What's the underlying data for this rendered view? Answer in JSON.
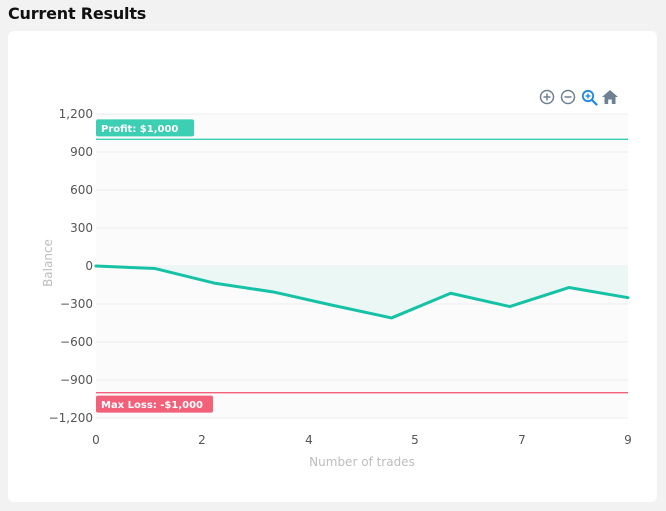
{
  "page": {
    "title": "Current Results"
  },
  "toolbar": {
    "icons": [
      "zoom-in-icon",
      "zoom-out-icon",
      "selection-zoom-icon",
      "home-icon"
    ],
    "active_color": "#1e88e5",
    "inactive_color": "#6e8192"
  },
  "chart_data": {
    "type": "line",
    "xlabel": "Number of trades",
    "ylabel": "Balance",
    "xlim": [
      0,
      9
    ],
    "ylim": [
      -1200,
      1200
    ],
    "x_ticks": [
      0,
      2,
      4,
      5,
      7,
      9
    ],
    "x_tick_labels": [
      "0",
      "2",
      "4",
      "5",
      "7",
      "9"
    ],
    "y_ticks": [
      1200,
      900,
      600,
      300,
      0,
      -300,
      -600,
      -900,
      -1200
    ],
    "y_tick_labels": [
      "1,200",
      "900",
      "600",
      "300",
      "0",
      "−300",
      "−600",
      "−900",
      "−1,200"
    ],
    "series": [
      {
        "color": "#16c2a5",
        "x": [
          0,
          1,
          2,
          3,
          4,
          5,
          6,
          7,
          8,
          9
        ],
        "y": [
          0,
          -20,
          -135,
          -205,
          -310,
          -410,
          -215,
          -320,
          -170,
          -250
        ]
      }
    ],
    "annotations": [
      {
        "y": 1000,
        "label": "Profit: $1,000",
        "color": "#3ccfb3"
      },
      {
        "y": -1000,
        "label": "Max Loss: -$1,000",
        "color": "#f2607a"
      }
    ],
    "grid": true,
    "fill_color": "#eaf7f4",
    "plot_background": "#fbfbfb"
  }
}
